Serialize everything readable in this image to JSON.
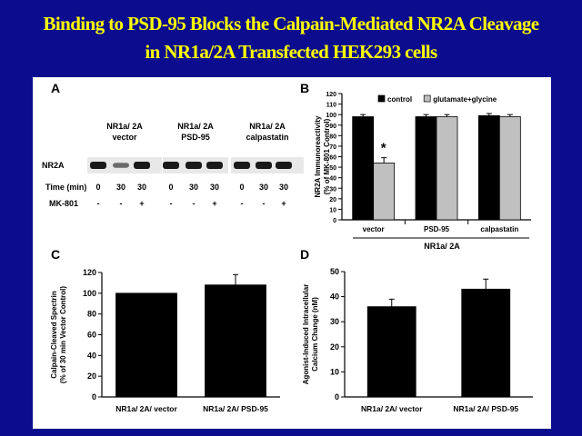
{
  "slide": {
    "title_line1": "Binding to PSD-95 Blocks the Calpain-Mediated NR2A Cleavage",
    "title_line2": "in NR1a/2A Transfected HEK293 cells",
    "colors": {
      "background": "#0c0c8e",
      "title": "#ffff00",
      "figure_bg": "#ffffff"
    }
  },
  "panel_a": {
    "letter": "A",
    "groups": [
      {
        "line1": "NR1a/ 2A",
        "line2": "vector"
      },
      {
        "line1": "NR1a/ 2A",
        "line2": "PSD-95"
      },
      {
        "line1": "NR1a/ 2A",
        "line2": "calpastatin"
      }
    ],
    "band_label": "NR2A",
    "time_label": "Time (min)",
    "time_values": [
      "0",
      "30",
      "30",
      "0",
      "30",
      "30",
      "0",
      "30",
      "30"
    ],
    "mk_label": "MK-801",
    "mk_values": [
      "-",
      "-",
      "+",
      "-",
      "-",
      "+",
      "-",
      "-",
      "+"
    ],
    "band_intensity": [
      1,
      0.35,
      1,
      1,
      1,
      1,
      1,
      1,
      1
    ]
  },
  "chart_data": [
    {
      "panel": "B",
      "type": "bar",
      "categories": [
        "vector",
        "PSD-95",
        "calpastatin"
      ],
      "group_label": "NR1a/ 2A",
      "series": [
        {
          "name": "control",
          "values": [
            98,
            98,
            99
          ],
          "errors": [
            2,
            2,
            2
          ],
          "color": "#000000"
        },
        {
          "name": "glutamate+glycine",
          "values": [
            54,
            98,
            98
          ],
          "errors": [
            5,
            2,
            2
          ],
          "color": "#c0c0c0"
        }
      ],
      "ylabel_line1": "NR2A Immunoreactivity",
      "ylabel_line2": "(% of MK-801 Control)",
      "ylim": [
        0,
        120
      ],
      "yticks": [
        "0",
        "10",
        "20",
        "30",
        "40",
        "50",
        "60",
        "70",
        "80",
        "90",
        "100",
        "110",
        "120"
      ],
      "annotation": "*",
      "legend": "top"
    },
    {
      "panel": "C",
      "type": "bar",
      "categories": [
        "NR1a/ 2A/ vector",
        "NR1a/ 2A/ PSD-95"
      ],
      "values": [
        100,
        108
      ],
      "errors": [
        0,
        10
      ],
      "ylabel_line1": "Calpain-Cleaved Spectrin",
      "ylabel_line2": "(% of 30 min Vector Control)",
      "ylim": [
        0,
        120
      ],
      "yticks": [
        "0",
        "20",
        "40",
        "60",
        "80",
        "100",
        "120"
      ]
    },
    {
      "panel": "D",
      "type": "bar",
      "categories": [
        "NR1a/ 2A/ vector",
        "NR1a/ 2A/ PSD-95"
      ],
      "values": [
        36,
        43
      ],
      "errors": [
        3,
        4
      ],
      "ylabel_line1": "Agonist-Induced Intracellular",
      "ylabel_line2": "Calcium Change (nM)",
      "ylim": [
        0,
        50
      ],
      "yticks": [
        "0",
        "10",
        "20",
        "30",
        "40",
        "50"
      ]
    }
  ]
}
